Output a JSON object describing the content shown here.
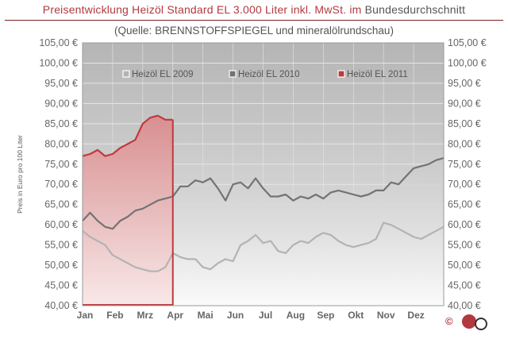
{
  "header": {
    "title_red": "Preisentwicklung Heizöl Standard EL 3.000 Liter inkl. MwSt. im",
    "title_gray": "Bundesdurchschnitt",
    "subtitle": "(Quelle: BRENNSTOFFSPIEGEL  und mineralölrundschau)"
  },
  "footer": {
    "copyright": "©"
  },
  "colors": {
    "plot_bg": "#b9b9b9",
    "grid": "#e6e6e6",
    "s2009": "#b3b3b3",
    "s2010": "#737373",
    "s2011": "#c0393d",
    "title_red": "#b2393f",
    "axis_text": "#666666"
  },
  "chart_data": {
    "type": "area",
    "title": "Preisentwicklung Heizöl Standard EL 3.000 Liter inkl. MwSt. im Bundesdurchschnitt",
    "ylabel": "Preis in Euro pro 100 Liter",
    "xlabel": "",
    "ylim": [
      40,
      105
    ],
    "yticks": [
      "40,00 €",
      "45,00 €",
      "50,00 €",
      "55,00 €",
      "60,00 €",
      "65,00 €",
      "70,00 €",
      "75,00 €",
      "80,00 €",
      "85,00 €",
      "90,00 €",
      "95,00 €",
      "100,00 €",
      "105,00 €"
    ],
    "ytick_values": [
      40,
      45,
      50,
      55,
      60,
      65,
      70,
      75,
      80,
      85,
      90,
      95,
      100,
      105
    ],
    "categories": [
      "Jan",
      "Feb",
      "Mrz",
      "Apr",
      "Mai",
      "Jun",
      "Jul",
      "Aug",
      "Sep",
      "Okt",
      "Nov",
      "Dez"
    ],
    "x_unit": "month index (0 = start of January, 12 = end of December)",
    "legend_placement": "top",
    "grid": true,
    "series": [
      {
        "name": "Heizöl EL 2009",
        "x": [
          0,
          0.25,
          0.5,
          0.75,
          1,
          1.25,
          1.5,
          1.75,
          2,
          2.25,
          2.5,
          2.75,
          3,
          3.25,
          3.5,
          3.75,
          4,
          4.25,
          4.5,
          4.75,
          5,
          5.25,
          5.5,
          5.75,
          6,
          6.25,
          6.5,
          6.75,
          7,
          7.25,
          7.5,
          7.75,
          8,
          8.25,
          8.5,
          8.75,
          9,
          9.25,
          9.5,
          9.75,
          10,
          10.25,
          10.5,
          10.75,
          11,
          11.25,
          11.5,
          11.75,
          12
        ],
        "values": [
          58.5,
          57,
          56,
          55,
          52.5,
          51.5,
          50.5,
          49.5,
          49,
          48.5,
          48.5,
          49.5,
          53,
          52,
          51.5,
          51.5,
          49.5,
          49,
          50.5,
          51.5,
          51,
          55,
          56,
          57.5,
          55.5,
          56,
          53.5,
          53,
          55,
          56,
          55.5,
          57,
          58,
          57.5,
          56,
          55,
          54.5,
          55,
          55.5,
          56.5,
          60.5,
          60,
          59,
          58,
          57,
          56.5,
          57.5,
          58.5,
          59.5
        ]
      },
      {
        "name": "Heizöl EL 2010",
        "x": [
          0,
          0.25,
          0.5,
          0.75,
          1,
          1.25,
          1.5,
          1.75,
          2,
          2.25,
          2.5,
          2.75,
          3,
          3.25,
          3.5,
          3.75,
          4,
          4.25,
          4.5,
          4.75,
          5,
          5.25,
          5.5,
          5.75,
          6,
          6.25,
          6.5,
          6.75,
          7,
          7.25,
          7.5,
          7.75,
          8,
          8.25,
          8.5,
          8.75,
          9,
          9.25,
          9.5,
          9.75,
          10,
          10.25,
          10.5,
          10.75,
          11,
          11.25,
          11.5,
          11.75,
          12
        ],
        "values": [
          61,
          63,
          61,
          59.5,
          59,
          61,
          62,
          63.5,
          64,
          65,
          66,
          66.5,
          67,
          69.5,
          69.5,
          71,
          70.5,
          71.5,
          69,
          66,
          70,
          70.5,
          69,
          71.5,
          69,
          67,
          67,
          67.5,
          66,
          67,
          66.5,
          67.5,
          66.5,
          68,
          68.5,
          68,
          67.5,
          67,
          67.5,
          68.5,
          68.5,
          70.5,
          70,
          72,
          74,
          74.5,
          75,
          76,
          76.5
        ]
      },
      {
        "name": "Heizöl EL 2011",
        "x": [
          0,
          0.25,
          0.5,
          0.75,
          1,
          1.25,
          1.5,
          1.75,
          2,
          2.25,
          2.5,
          2.75,
          3
        ],
        "values": [
          77,
          77.5,
          78.5,
          77,
          77.5,
          79,
          80,
          81,
          85,
          86.5,
          87,
          86,
          86
        ]
      }
    ]
  }
}
